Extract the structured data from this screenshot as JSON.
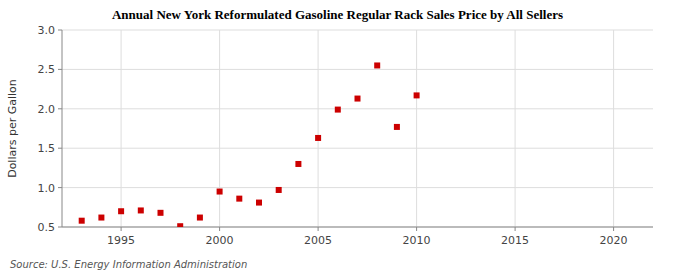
{
  "chart_data": {
    "type": "scatter",
    "title": "Annual New York Reformulated Gasoline Regular Rack Sales Price by All Sellers",
    "ylabel": "Dollars per Gallon",
    "source": "Source: U.S. Energy Information Administration",
    "x": [
      1993,
      1994,
      1995,
      1996,
      1997,
      1998,
      1999,
      2000,
      2001,
      2002,
      2003,
      2004,
      2005,
      2006,
      2007,
      2008,
      2009,
      2010
    ],
    "values": [
      0.58,
      0.62,
      0.7,
      0.71,
      0.68,
      0.51,
      0.62,
      0.95,
      0.86,
      0.81,
      0.97,
      1.3,
      1.63,
      1.99,
      2.13,
      2.55,
      1.77,
      2.17
    ],
    "color": "#cc0000",
    "marker": "square",
    "xlim": [
      1992,
      2022
    ],
    "ylim": [
      0.5,
      3.0
    ],
    "xticks": [
      1995,
      2000,
      2005,
      2010,
      2015,
      2020
    ],
    "yticks": [
      0.5,
      {
        "value": 1.0,
        "label": "1.0"
      },
      1.5,
      {
        "value": 2.0,
        "label": "2.0"
      },
      2.5,
      {
        "value": 3.0,
        "label": "3.0"
      }
    ],
    "grid": true
  }
}
